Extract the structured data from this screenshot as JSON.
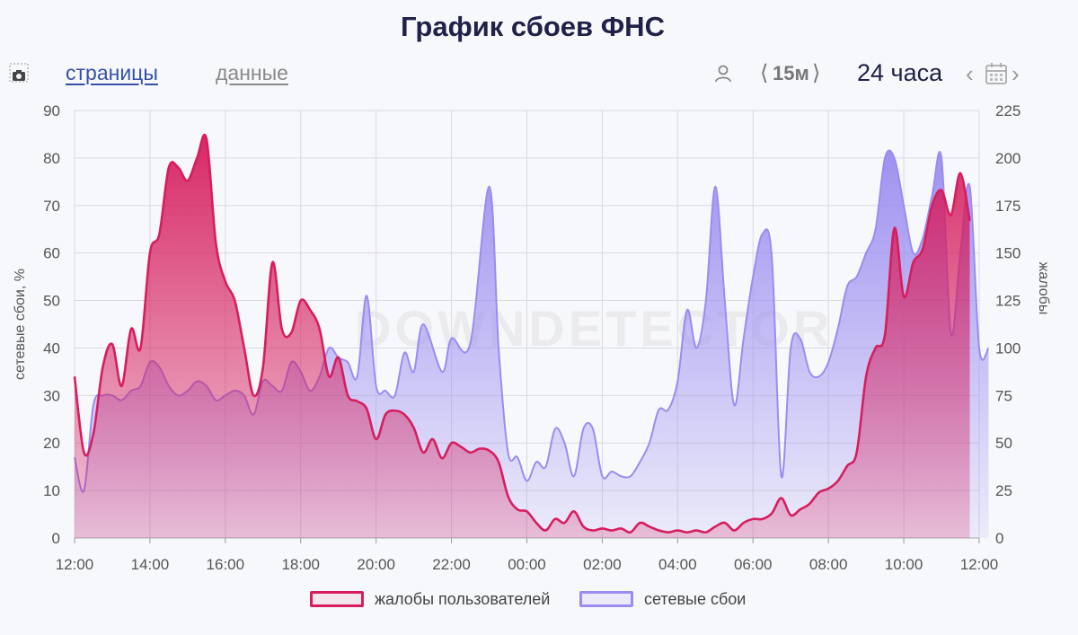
{
  "title": "График сбоев ФНС",
  "toolbar": {
    "pages_link": "страницы",
    "data_link": "данные",
    "interval_value": "15м",
    "interval_prev": "⟨",
    "interval_next": "⟩",
    "period_label": "24 часа",
    "period_prev": "‹",
    "period_next": "›"
  },
  "icons": {
    "camera": "camera-icon",
    "user": "user-icon",
    "calendar": "calendar-icon"
  },
  "watermark": "DOWNDETECTOR",
  "colors": {
    "complaints": "#d61e5e",
    "outages": "#9a8cf0",
    "grid": "#d9d9e0"
  },
  "chart_data": {
    "type": "area",
    "x_ticks": [
      "12:00",
      "14:00",
      "16:00",
      "18:00",
      "20:00",
      "22:00",
      "00:00",
      "02:00",
      "04:00",
      "06:00",
      "08:00",
      "10:00",
      "12:00"
    ],
    "x_range_hours": [
      0,
      24
    ],
    "y_left": {
      "label": "сетевые сбои, %",
      "min": 0,
      "max": 90,
      "ticks": [
        0,
        10,
        20,
        30,
        40,
        50,
        60,
        70,
        80,
        90
      ]
    },
    "y_right": {
      "label": "жалобы",
      "min": 0,
      "max": 225,
      "ticks": [
        0,
        25,
        50,
        75,
        100,
        125,
        150,
        175,
        200,
        225
      ]
    },
    "grid": true,
    "legend_position": "bottom",
    "series": [
      {
        "name": "жалобы пользователей",
        "axis": "right",
        "color": "#d61e5e",
        "points": [
          [
            0,
            85
          ],
          [
            0.25,
            45
          ],
          [
            0.5,
            55
          ],
          [
            0.75,
            90
          ],
          [
            1,
            102
          ],
          [
            1.25,
            80
          ],
          [
            1.5,
            110
          ],
          [
            1.75,
            100
          ],
          [
            2,
            150
          ],
          [
            2.25,
            160
          ],
          [
            2.5,
            195
          ],
          [
            2.75,
            195
          ],
          [
            3,
            188
          ],
          [
            3.25,
            200
          ],
          [
            3.5,
            210
          ],
          [
            3.75,
            155
          ],
          [
            4,
            135
          ],
          [
            4.25,
            125
          ],
          [
            4.5,
            100
          ],
          [
            4.75,
            75
          ],
          [
            5,
            90
          ],
          [
            5.25,
            145
          ],
          [
            5.5,
            110
          ],
          [
            5.75,
            108
          ],
          [
            6,
            125
          ],
          [
            6.25,
            120
          ],
          [
            6.5,
            110
          ],
          [
            6.75,
            85
          ],
          [
            7,
            95
          ],
          [
            7.25,
            75
          ],
          [
            7.5,
            72
          ],
          [
            7.75,
            68
          ],
          [
            8,
            52
          ],
          [
            8.25,
            65
          ],
          [
            8.5,
            67
          ],
          [
            8.75,
            65
          ],
          [
            9,
            58
          ],
          [
            9.25,
            45
          ],
          [
            9.5,
            52
          ],
          [
            9.75,
            42
          ],
          [
            10,
            50
          ],
          [
            10.25,
            48
          ],
          [
            10.5,
            45
          ],
          [
            10.75,
            47
          ],
          [
            11,
            46
          ],
          [
            11.25,
            40
          ],
          [
            11.5,
            22
          ],
          [
            11.75,
            15
          ],
          [
            12,
            14
          ],
          [
            12.25,
            8
          ],
          [
            12.5,
            4
          ],
          [
            12.75,
            10
          ],
          [
            13,
            8
          ],
          [
            13.25,
            14
          ],
          [
            13.5,
            6
          ],
          [
            13.75,
            4
          ],
          [
            14,
            5
          ],
          [
            14.25,
            4
          ],
          [
            14.5,
            5
          ],
          [
            14.75,
            3
          ],
          [
            15,
            8
          ],
          [
            15.25,
            6
          ],
          [
            15.5,
            4
          ],
          [
            15.75,
            3
          ],
          [
            16,
            4
          ],
          [
            16.25,
            3
          ],
          [
            16.5,
            4
          ],
          [
            16.75,
            3
          ],
          [
            17,
            6
          ],
          [
            17.25,
            8
          ],
          [
            17.5,
            4
          ],
          [
            17.75,
            8
          ],
          [
            18,
            10
          ],
          [
            18.25,
            10
          ],
          [
            18.5,
            13
          ],
          [
            18.75,
            21
          ],
          [
            19,
            12
          ],
          [
            19.25,
            15
          ],
          [
            19.5,
            18
          ],
          [
            19.75,
            24
          ],
          [
            20,
            26
          ],
          [
            20.25,
            30
          ],
          [
            20.5,
            38
          ],
          [
            20.75,
            45
          ],
          [
            21,
            85
          ],
          [
            21.25,
            100
          ],
          [
            21.5,
            107
          ],
          [
            21.75,
            163
          ],
          [
            22,
            127
          ],
          [
            22.25,
            145
          ],
          [
            22.5,
            152
          ],
          [
            22.75,
            175
          ],
          [
            23,
            183
          ],
          [
            23.25,
            170
          ],
          [
            23.5,
            192
          ],
          [
            23.75,
            167
          ]
        ]
      },
      {
        "name": "сетевые сбои",
        "axis": "left",
        "color": "#9a8cf0",
        "points": [
          [
            0,
            17
          ],
          [
            0.25,
            10
          ],
          [
            0.5,
            28
          ],
          [
            0.75,
            30
          ],
          [
            1,
            30
          ],
          [
            1.25,
            29
          ],
          [
            1.5,
            31
          ],
          [
            1.75,
            32
          ],
          [
            2,
            37
          ],
          [
            2.25,
            36
          ],
          [
            2.5,
            32
          ],
          [
            2.75,
            30
          ],
          [
            3,
            31
          ],
          [
            3.25,
            33
          ],
          [
            3.5,
            32
          ],
          [
            3.75,
            29
          ],
          [
            4,
            30
          ],
          [
            4.25,
            31
          ],
          [
            4.5,
            30
          ],
          [
            4.75,
            26
          ],
          [
            5,
            33
          ],
          [
            5.25,
            32
          ],
          [
            5.5,
            31
          ],
          [
            5.75,
            37
          ],
          [
            6,
            35
          ],
          [
            6.25,
            31
          ],
          [
            6.5,
            34
          ],
          [
            6.75,
            40
          ],
          [
            7,
            38
          ],
          [
            7.25,
            37
          ],
          [
            7.5,
            34
          ],
          [
            7.75,
            51
          ],
          [
            8,
            32
          ],
          [
            8.25,
            31
          ],
          [
            8.5,
            30
          ],
          [
            8.75,
            39
          ],
          [
            9,
            35
          ],
          [
            9.25,
            45
          ],
          [
            9.75,
            35
          ],
          [
            10,
            42
          ],
          [
            10.5,
            41
          ],
          [
            11,
            74
          ],
          [
            11.25,
            40
          ],
          [
            11.5,
            18
          ],
          [
            11.75,
            17
          ],
          [
            12,
            12
          ],
          [
            12.25,
            16
          ],
          [
            12.5,
            15
          ],
          [
            12.75,
            23
          ],
          [
            13,
            20
          ],
          [
            13.25,
            13
          ],
          [
            13.5,
            23
          ],
          [
            13.75,
            23
          ],
          [
            14,
            13
          ],
          [
            14.25,
            14
          ],
          [
            14.5,
            13
          ],
          [
            14.75,
            13
          ],
          [
            15,
            16
          ],
          [
            15.25,
            20
          ],
          [
            15.5,
            27
          ],
          [
            15.75,
            27
          ],
          [
            16,
            33
          ],
          [
            16.25,
            48
          ],
          [
            16.5,
            40
          ],
          [
            16.75,
            50
          ],
          [
            17,
            74
          ],
          [
            17.25,
            50
          ],
          [
            17.5,
            28
          ],
          [
            17.75,
            42
          ],
          [
            18,
            55
          ],
          [
            18.25,
            64
          ],
          [
            18.5,
            59
          ],
          [
            18.75,
            13
          ],
          [
            19,
            40
          ],
          [
            19.25,
            42
          ],
          [
            19.5,
            35
          ],
          [
            19.75,
            34
          ],
          [
            20,
            37
          ],
          [
            20.25,
            44
          ],
          [
            20.5,
            53
          ],
          [
            20.75,
            55
          ],
          [
            21,
            60
          ],
          [
            21.25,
            65
          ],
          [
            21.5,
            80
          ],
          [
            21.75,
            80
          ],
          [
            22,
            70
          ],
          [
            22.25,
            60
          ],
          [
            22.5,
            63
          ],
          [
            22.75,
            72
          ],
          [
            23,
            80
          ],
          [
            23.25,
            43
          ],
          [
            23.5,
            60
          ],
          [
            23.75,
            74
          ],
          [
            24,
            40
          ],
          [
            24.25,
            40
          ]
        ]
      }
    ]
  },
  "legend": {
    "complaints": "жалобы пользователей",
    "outages": "сетевые сбои"
  }
}
